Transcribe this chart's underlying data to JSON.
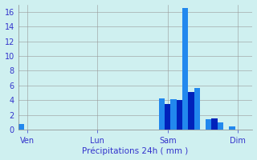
{
  "xlabel": "Précipitations 24h ( mm )",
  "background_color": "#cff0f0",
  "bar_color_dark": "#0022bb",
  "bar_color_light": "#2288ee",
  "ylim": [
    0,
    17
  ],
  "yticks": [
    0,
    2,
    4,
    6,
    8,
    10,
    12,
    14,
    16
  ],
  "day_labels": [
    "Ven",
    "Lun",
    "Sam",
    "Dim"
  ],
  "day_positions": [
    1,
    13,
    25,
    37
  ],
  "num_bars": 40,
  "bar_values": [
    0.8,
    0,
    0,
    0,
    0,
    0,
    0,
    0,
    0,
    0,
    0,
    0,
    0,
    0,
    0,
    0,
    0,
    0,
    0,
    0,
    0,
    0,
    0,
    0,
    4.2,
    3.5,
    4.1,
    4.0,
    16.5,
    5.1,
    5.7,
    0,
    1.4,
    1.5,
    1.0,
    0,
    0.5,
    0,
    0,
    0
  ],
  "bar_alternating": [
    1,
    0,
    0,
    0,
    0,
    0,
    0,
    0,
    0,
    0,
    0,
    0,
    0,
    0,
    0,
    0,
    0,
    0,
    0,
    0,
    0,
    0,
    0,
    0,
    1,
    0,
    1,
    0,
    1,
    0,
    1,
    0,
    1,
    0,
    1,
    0,
    1,
    0,
    0,
    0
  ]
}
